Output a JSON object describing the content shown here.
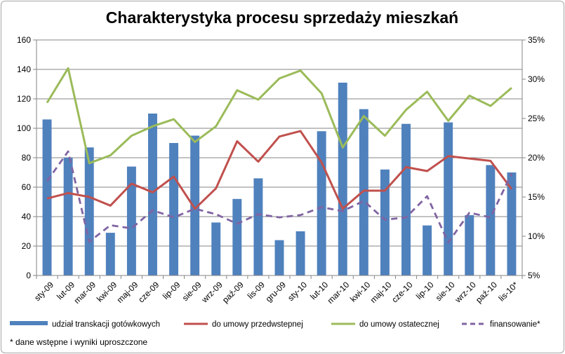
{
  "chart_data": {
    "type": "bar+line",
    "title": "Charakterystyka procesu sprzedaży mieszkań",
    "categories": [
      "sty-09",
      "lut-09",
      "mar-09",
      "kwi-09",
      "maj-09",
      "cze-09",
      "lip-09",
      "sie-09",
      "wrz-09",
      "paź-09",
      "lis-09",
      "gru-09",
      "sty-10",
      "lut-10",
      "mar-10",
      "kwi-10",
      "maj-10",
      "cze-10",
      "lip-10",
      "sie-10",
      "wrz-10",
      "paź-10",
      "lis-10*"
    ],
    "y_left": {
      "min": 0,
      "max": 160,
      "ticks": [
        "0",
        "20",
        "40",
        "60",
        "80",
        "100",
        "120",
        "140",
        "160"
      ]
    },
    "y_right": {
      "min": 0.05,
      "max": 0.35,
      "ticks": [
        "5%",
        "10%",
        "15%",
        "20%",
        "25%",
        "30%",
        "35%"
      ]
    },
    "grid": true,
    "legend_position": "bottom",
    "series": [
      {
        "name": "udział transkacji gotówkowych",
        "type": "bar",
        "axis": "left",
        "color": "#4f81bd",
        "values": [
          106,
          80,
          87,
          29,
          74,
          110,
          90,
          95,
          36,
          52,
          66,
          24,
          30,
          98,
          131,
          113,
          72,
          103,
          34,
          104,
          41,
          75,
          70
        ]
      },
      {
        "name": "do umowy przedwstepnej",
        "type": "line",
        "axis": "right",
        "color": "#c0504d",
        "values": [
          0.148,
          0.155,
          0.15,
          0.139,
          0.167,
          0.156,
          0.176,
          0.135,
          0.161,
          0.221,
          0.195,
          0.227,
          0.234,
          0.194,
          0.135,
          0.158,
          0.158,
          0.188,
          0.183,
          0.202,
          0.199,
          0.196,
          0.16
        ]
      },
      {
        "name": "do umowy ostatecznej",
        "type": "line",
        "axis": "right",
        "color": "#9bbb59",
        "values": [
          0.27,
          0.314,
          0.193,
          0.203,
          0.228,
          0.24,
          0.249,
          0.22,
          0.24,
          0.286,
          0.274,
          0.301,
          0.311,
          0.282,
          0.213,
          0.253,
          0.228,
          0.261,
          0.284,
          0.247,
          0.279,
          0.266,
          0.289
        ]
      },
      {
        "name": "finansowanie*",
        "type": "line",
        "dashed": true,
        "axis": "right",
        "color": "#8064a2",
        "values": [
          0.17,
          0.208,
          0.093,
          0.114,
          0.11,
          0.133,
          0.124,
          0.135,
          0.128,
          0.116,
          0.128,
          0.124,
          0.127,
          0.137,
          0.132,
          0.145,
          0.121,
          0.124,
          0.151,
          0.092,
          0.13,
          0.124,
          0.18
        ]
      }
    ]
  },
  "footnote": "* dane wstępne i wyniki uproszczone"
}
